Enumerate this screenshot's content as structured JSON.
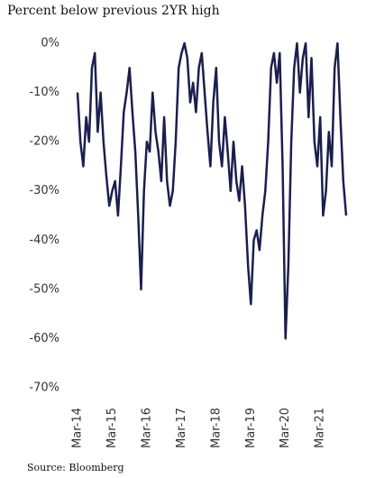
{
  "chart_data": {
    "type": "line",
    "title": "Percent below previous 2YR high",
    "source": "Source: Bloomberg",
    "categories": [
      "Mar-14",
      null,
      null,
      null,
      null,
      null,
      null,
      null,
      null,
      null,
      null,
      null,
      "Mar-15",
      null,
      null,
      null,
      null,
      null,
      null,
      null,
      null,
      null,
      null,
      null,
      "Mar-16",
      null,
      null,
      null,
      null,
      null,
      null,
      null,
      null,
      null,
      null,
      null,
      "Mar-17",
      null,
      null,
      null,
      null,
      null,
      null,
      null,
      null,
      null,
      null,
      null,
      "Mar-18",
      null,
      null,
      null,
      null,
      null,
      null,
      null,
      null,
      null,
      null,
      null,
      "Mar-19",
      null,
      null,
      null,
      null,
      null,
      null,
      null,
      null,
      null,
      null,
      null,
      "Mar-20",
      null,
      null,
      null,
      null,
      null,
      null,
      null,
      null,
      null,
      null,
      null,
      "Mar-21",
      null,
      null,
      null,
      null,
      null,
      null,
      null,
      null,
      null
    ],
    "series": [
      {
        "name": "Percent below previous 2YR high",
        "color": "#1b1f4d",
        "values": [
          -10,
          -20,
          -25,
          -15,
          -20,
          -5,
          -2,
          -18,
          -10,
          -20,
          -27,
          -33,
          -30,
          -28,
          -35,
          -25,
          -14,
          -10,
          -5,
          -14,
          -22,
          -35,
          -50,
          -30,
          -20,
          -22,
          -10,
          -18,
          -22,
          -28,
          -15,
          -28,
          -33,
          -30,
          -20,
          -5,
          -2,
          0,
          -3,
          -12,
          -8,
          -14,
          -5,
          -2,
          -10,
          -18,
          -25,
          -12,
          -5,
          -20,
          -25,
          -15,
          -22,
          -30,
          -20,
          -28,
          -32,
          -25,
          -33,
          -45,
          -53,
          -40,
          -38,
          -42,
          -35,
          -30,
          -20,
          -5,
          -2,
          -8,
          -2,
          -25,
          -60,
          -45,
          -20,
          -5,
          0,
          -10,
          -3,
          0,
          -15,
          -3,
          -20,
          -25,
          -15,
          -35,
          -30,
          -18,
          -25,
          -5,
          0,
          -15,
          -28,
          -35
        ]
      }
    ],
    "ylim": [
      -70,
      0
    ],
    "yticks": [
      {
        "value": 0,
        "label": "0%"
      },
      {
        "value": -10,
        "label": "-10%"
      },
      {
        "value": -20,
        "label": "-20%"
      },
      {
        "value": -30,
        "label": "-30%"
      },
      {
        "value": -40,
        "label": "-40%"
      },
      {
        "value": -50,
        "label": "-50%"
      },
      {
        "value": -60,
        "label": "-60%"
      },
      {
        "value": -70,
        "label": "-70%"
      }
    ],
    "grid": false
  }
}
